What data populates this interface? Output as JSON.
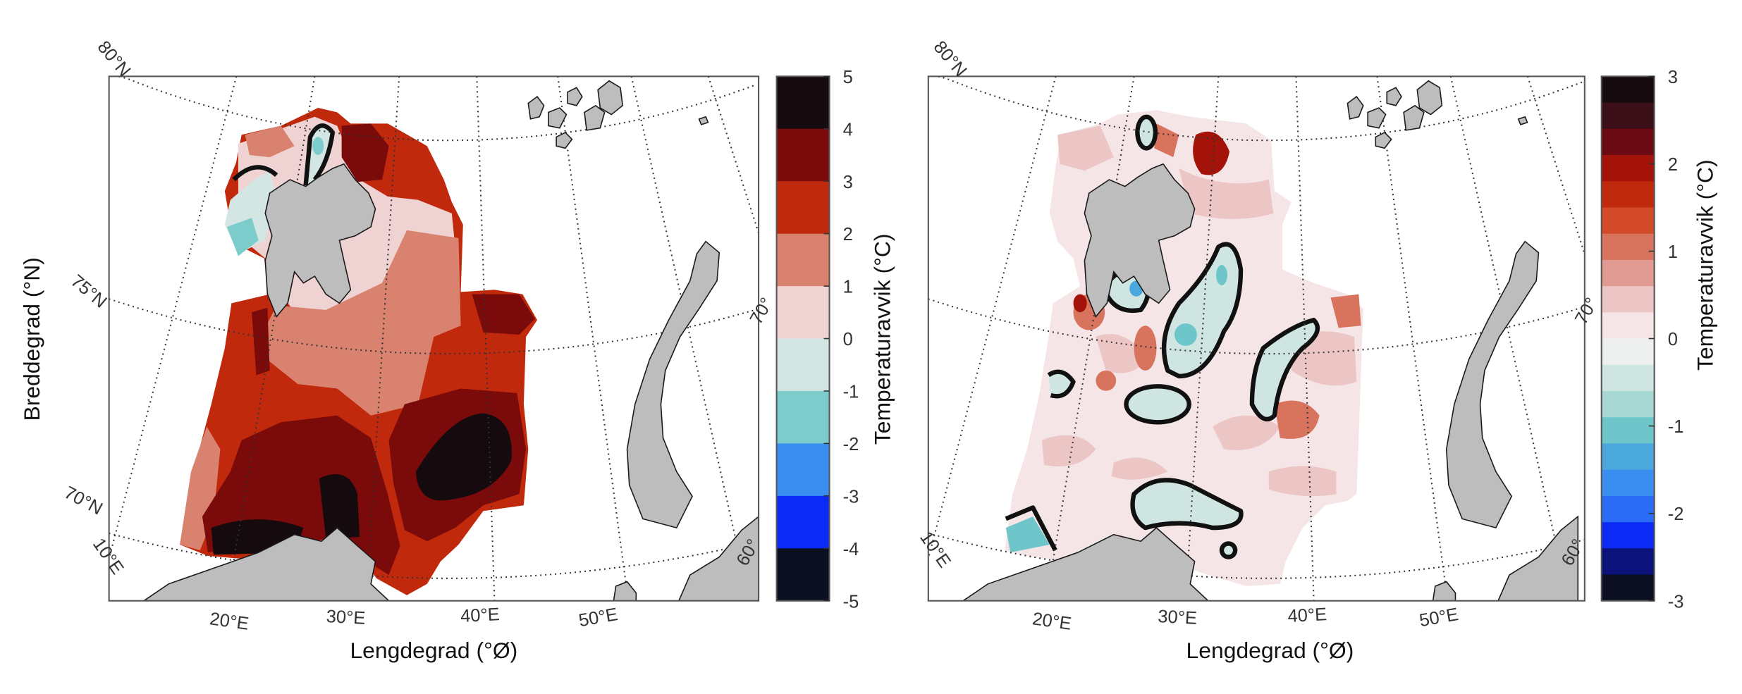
{
  "chart_data": [
    {
      "type": "heatmap",
      "map_kind": "filled contour map of temperature anomaly, Barents Sea",
      "xlabel": "Lengdegrad (°Ø)",
      "ylabel": "Breddegrad (°N)",
      "lon_tick_labels": [
        "20°E",
        "30°E",
        "40°E",
        "50°E"
      ],
      "lat_tick_labels": [
        "80°N",
        "75°N",
        "70°N",
        "10°E",
        "70°",
        "60°"
      ],
      "colorbar": {
        "label": "Temperaturavvik (°C)",
        "range": [
          -5,
          5
        ],
        "ticks": [
          "5",
          "4",
          "3",
          "2",
          "1",
          "0",
          "-1",
          "-2",
          "-3",
          "-4",
          "-5"
        ],
        "colors_top_to_bottom": [
          "#150a0e",
          "#7b0a0a",
          "#c1290c",
          "#d9826f",
          "#efd3d3",
          "#d3e6e3",
          "#7ccccc",
          "#3a8ef0",
          "#0b2af5",
          "#0c0f22"
        ]
      },
      "land_color": "#bdbdbd"
    },
    {
      "type": "heatmap",
      "map_kind": "filled contour map of temperature anomaly, Barents Sea",
      "xlabel": "Lengdegrad (°Ø)",
      "ylabel": "",
      "lon_tick_labels": [
        "20°E",
        "30°E",
        "40°E",
        "50°E"
      ],
      "lat_tick_labels": [
        "80°N",
        "10°E",
        "70°",
        "60°"
      ],
      "colorbar": {
        "label": "Temperaturavvik (°C)",
        "range": [
          -3,
          3
        ],
        "ticks": [
          "3",
          "2",
          "1",
          "0",
          "-1",
          "-2",
          "-3"
        ],
        "colors_top_to_bottom": [
          "#150a0e",
          "#3a0f18",
          "#6b0a12",
          "#a3130a",
          "#c1290c",
          "#d24a28",
          "#d8735e",
          "#e09a92",
          "#ecc5c5",
          "#f5e5e6",
          "#eef0f0",
          "#cfe5e2",
          "#a8d8d4",
          "#6ec6cb",
          "#4aa8dd",
          "#3a8ef0",
          "#2a6cf5",
          "#0b2af5",
          "#0b127a",
          "#0c0f22"
        ]
      },
      "land_color": "#bdbdbd"
    }
  ]
}
